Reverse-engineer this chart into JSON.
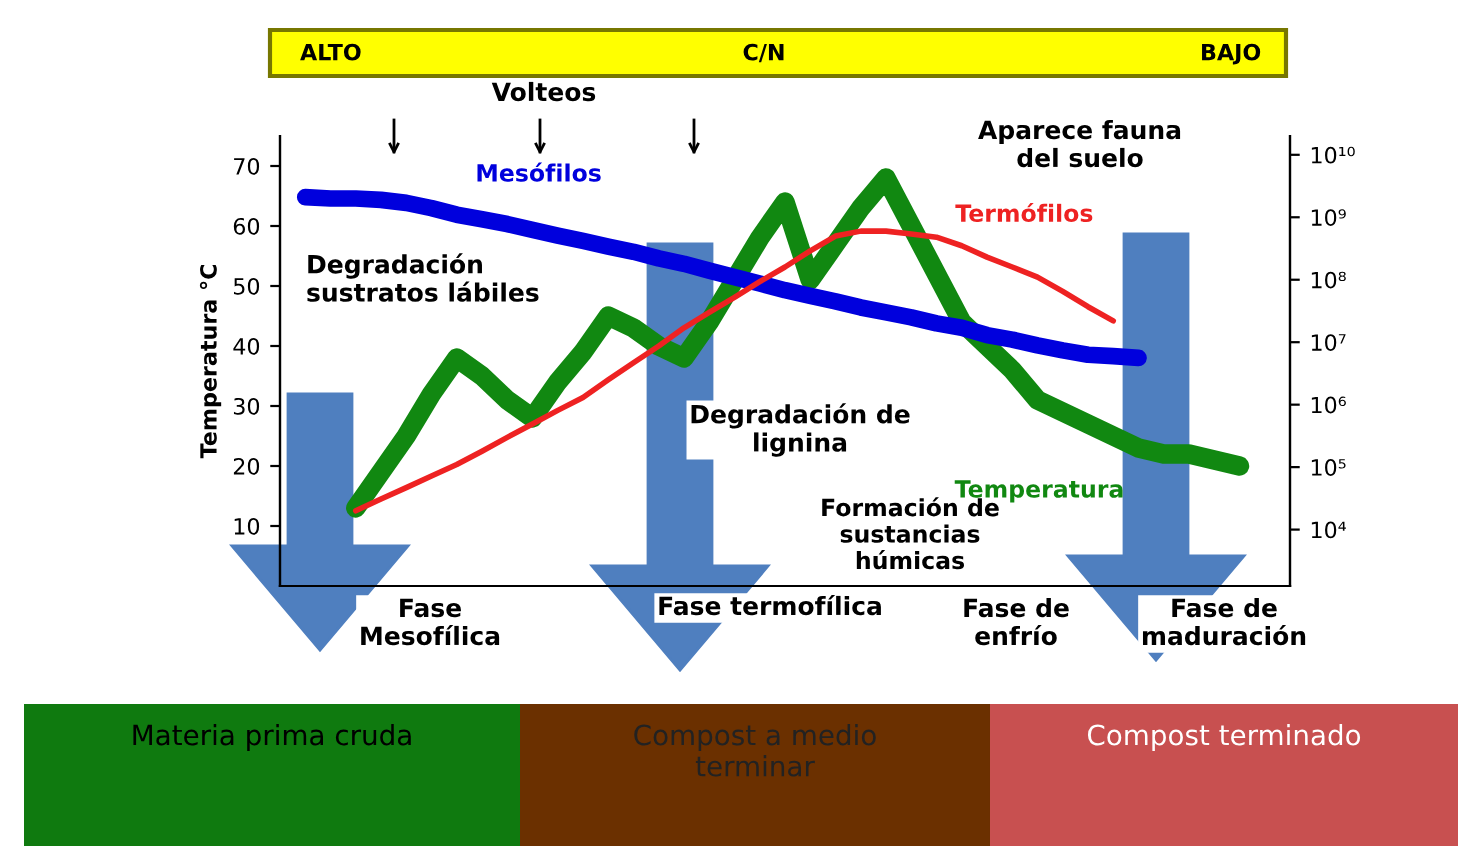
{
  "chart_data": {
    "type": "line",
    "ylabel": "Temperatura °C",
    "categories": [
      null,
      null,
      null,
      null,
      null,
      null,
      null,
      null,
      null,
      null,
      null,
      null,
      null,
      null,
      null,
      null,
      null,
      null,
      null,
      null,
      null,
      null,
      null,
      null,
      null,
      null,
      null,
      null,
      null,
      null,
      null,
      null,
      null,
      null,
      null,
      null,
      null,
      null,
      null,
      null,
      null
    ],
    "ylim": [
      0,
      75
    ],
    "yticks": [
      10,
      20,
      30,
      40,
      50,
      60,
      70
    ],
    "y2lim": [
      1250,
      20000000000
    ],
    "y2ticks": [
      {
        "value": 10000,
        "label": "10⁴"
      },
      {
        "value": 100000,
        "label": "10⁵"
      },
      {
        "value": 1000000,
        "label": "10⁶"
      },
      {
        "value": 10000000,
        "label": "10⁷"
      },
      {
        "value": 100000000,
        "label": "10⁸"
      },
      {
        "value": 1000000000,
        "label": "10⁹"
      },
      {
        "value": 10000000000,
        "label": "10¹⁰"
      }
    ],
    "log": "y2",
    "grid": false,
    "marker": "none",
    "series": [
      {
        "name": "Mesófilos",
        "color": "#0000dd",
        "axis": "y2",
        "values": [
          null,
          2100000000.0,
          2000000000.0,
          2000000000.0,
          1900000000.0,
          1700000000.0,
          1400000000.0,
          1100000000.0,
          930000000.0,
          780000000.0,
          630000000.0,
          510000000.0,
          420000000.0,
          340000000.0,
          280000000.0,
          220000000.0,
          180000000.0,
          140000000.0,
          110000000.0,
          87000000.0,
          68000000.0,
          55000000.0,
          45000000.0,
          36000000.0,
          30000000.0,
          25000000.0,
          20000000.0,
          17000000.0,
          13000000.0,
          11000000.0,
          8900000.0,
          7400000.0,
          6300000.0,
          6000000.0,
          5600000.0,
          null,
          null,
          null,
          null,
          null,
          null
        ]
      },
      {
        "name": "Termófilos",
        "color": "#ee2222",
        "axis": "y2",
        "values": [
          null,
          null,
          null,
          20000.0,
          31000.0,
          47000.0,
          72000.0,
          110000.0,
          180000.0,
          300000.0,
          490000.0,
          810000.0,
          1300000.0,
          2500000.0,
          4700000.0,
          8700000.0,
          17000000.0,
          30000000.0,
          52000000.0,
          93000000.0,
          160000000.0,
          290000000.0,
          500000000.0,
          600000000.0,
          600000000.0,
          540000000.0,
          480000000.0,
          350000000.0,
          230000000.0,
          160000000.0,
          110000000.0,
          65000000.0,
          37000000.0,
          22000000.0,
          null,
          null,
          null,
          null,
          null,
          null,
          null
        ]
      },
      {
        "name": "Temperatura",
        "color": "#118811",
        "values": [
          null,
          null,
          null,
          13,
          19,
          25,
          32,
          38,
          35,
          31,
          28,
          34,
          39,
          45,
          43,
          40,
          38,
          44,
          51,
          58,
          64,
          51,
          57,
          63,
          68,
          60,
          52,
          44,
          40,
          36,
          31,
          29,
          27,
          25,
          23,
          22,
          22,
          21,
          20,
          null,
          null
        ]
      }
    ],
    "annotations": [
      "ALTO",
      "C/N",
      "BAJO",
      "Volteos",
      "Degradación\nsustratos lábiles",
      "Aparece fauna\ndel suelo",
      "Degradación de\nlignina",
      "Formación de\nsustancias\nhúmicas",
      "Fase\nMesofílica",
      "Fase termofílica",
      "Fase de\nenfrío",
      "Fase de\nmaduración",
      "Materia prima cruda",
      "Compost a medio\nterminar",
      "Compost terminado"
    ]
  }
}
